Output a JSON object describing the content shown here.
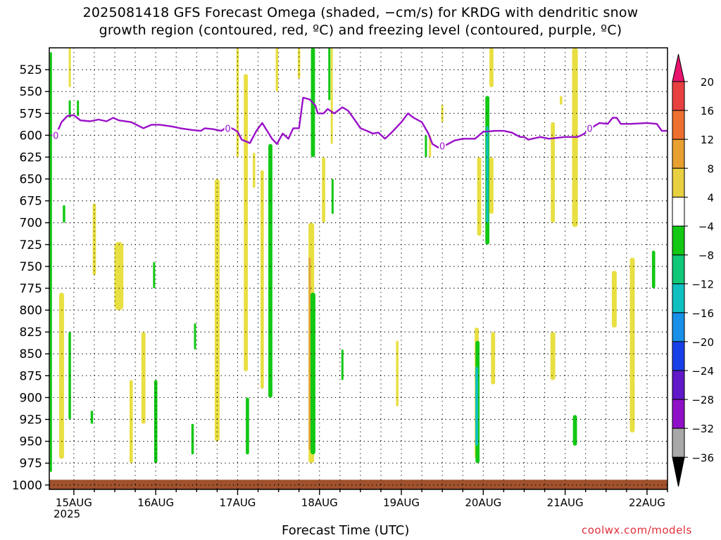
{
  "title": {
    "line1": "2025081418 GFS Forecast Omega (shaded, −cm/s) for KRDG with dendritic snow",
    "line2": "growth region (contoured, red, ºC) and freezing level (contoured, purple, ºC)"
  },
  "xlabel": "Forecast Time (UTC)",
  "credit": "coolwx.com/models",
  "colors": {
    "freezing_level": "#9a10c8",
    "ground": "#a0522d",
    "grid": "#000000"
  },
  "chart_data": {
    "type": "heatmap",
    "title": "2025081418 GFS Forecast Omega (shaded, −cm/s) for KRDG with dendritic snow growth region (contoured, red, ºC) and freezing level (contoured, purple, ºC)",
    "xlabel": "Forecast Time (UTC)",
    "ylabel": "",
    "y_scale": "pressure (hPa), inverted",
    "ylim": [
      1005,
      500
    ],
    "xlim": [
      14.7,
      22.25
    ],
    "x_ticks": [
      {
        "v": 15,
        "label": "15AUG"
      },
      {
        "v": 16,
        "label": "16AUG"
      },
      {
        "v": 17,
        "label": "17AUG"
      },
      {
        "v": 18,
        "label": "18AUG"
      },
      {
        "v": 19,
        "label": "19AUG"
      },
      {
        "v": 20,
        "label": "20AUG"
      },
      {
        "v": 21,
        "label": "21AUG"
      },
      {
        "v": 22,
        "label": "22AUG"
      }
    ],
    "x_sub_label": "2025",
    "y_ticks": [
      525,
      550,
      575,
      600,
      625,
      650,
      675,
      700,
      725,
      750,
      775,
      800,
      825,
      850,
      875,
      900,
      925,
      950,
      975,
      1000
    ],
    "grid": true,
    "colorbar": {
      "labels": [
        "20",
        "16",
        "12",
        "8",
        "4",
        "−4",
        "−8",
        "−12",
        "−16",
        "−20",
        "−24",
        "−28",
        "−32",
        "−36"
      ],
      "colors": [
        "#e8146e",
        "#e84040",
        "#ee7030",
        "#e8a030",
        "#e8d040",
        "#ffffff",
        "#12c814",
        "#10c878",
        "#10c0c0",
        "#1890e8",
        "#1840e8",
        "#6018c8",
        "#9010c8",
        "#a8a8a8",
        "#000000"
      ]
    },
    "freezing_level_line": {
      "label": "0",
      "points": [
        [
          14.72,
          600
        ],
        [
          14.78,
          600
        ],
        [
          14.85,
          585
        ],
        [
          14.92,
          578
        ],
        [
          15.0,
          577
        ],
        [
          15.08,
          583
        ],
        [
          15.2,
          584
        ],
        [
          15.3,
          582
        ],
        [
          15.4,
          584
        ],
        [
          15.48,
          580
        ],
        [
          15.55,
          583
        ],
        [
          15.7,
          585
        ],
        [
          15.85,
          592
        ],
        [
          15.95,
          588
        ],
        [
          16.05,
          588
        ],
        [
          16.2,
          590
        ],
        [
          16.3,
          592
        ],
        [
          16.45,
          594
        ],
        [
          16.55,
          595
        ],
        [
          16.6,
          592
        ],
        [
          16.7,
          593
        ],
        [
          16.8,
          595
        ],
        [
          16.88,
          590
        ],
        [
          16.95,
          593
        ],
        [
          17.0,
          596
        ],
        [
          17.05,
          605
        ],
        [
          17.15,
          609
        ],
        [
          17.23,
          595
        ],
        [
          17.3,
          586
        ],
        [
          17.38,
          598
        ],
        [
          17.42,
          604
        ],
        [
          17.48,
          610
        ],
        [
          17.55,
          598
        ],
        [
          17.62,
          604
        ],
        [
          17.68,
          592
        ],
        [
          17.75,
          592
        ],
        [
          17.8,
          557
        ],
        [
          17.88,
          559
        ],
        [
          17.95,
          566
        ],
        [
          17.98,
          575
        ],
        [
          18.05,
          575
        ],
        [
          18.1,
          570
        ],
        [
          18.18,
          575
        ],
        [
          18.28,
          568
        ],
        [
          18.35,
          572
        ],
        [
          18.45,
          585
        ],
        [
          18.5,
          592
        ],
        [
          18.58,
          595
        ],
        [
          18.65,
          598
        ],
        [
          18.72,
          597
        ],
        [
          18.8,
          604
        ],
        [
          18.88,
          597
        ],
        [
          19.0,
          585
        ],
        [
          19.08,
          575
        ],
        [
          19.15,
          580
        ],
        [
          19.25,
          585
        ],
        [
          19.33,
          598
        ],
        [
          19.38,
          610
        ],
        [
          19.45,
          614
        ],
        [
          19.55,
          611
        ],
        [
          19.65,
          606
        ],
        [
          19.75,
          604
        ],
        [
          19.9,
          604
        ],
        [
          20.0,
          596
        ],
        [
          20.15,
          595
        ],
        [
          20.25,
          595
        ],
        [
          20.35,
          597
        ],
        [
          20.45,
          602
        ],
        [
          20.5,
          602
        ],
        [
          20.55,
          605
        ],
        [
          20.7,
          602
        ],
        [
          20.8,
          604
        ],
        [
          20.9,
          603
        ],
        [
          21.0,
          602
        ],
        [
          21.15,
          602
        ],
        [
          21.22,
          599
        ],
        [
          21.28,
          595
        ],
        [
          21.33,
          591
        ],
        [
          21.42,
          586
        ],
        [
          21.52,
          587
        ],
        [
          21.58,
          580
        ],
        [
          21.63,
          580
        ],
        [
          21.68,
          587
        ],
        [
          21.8,
          587
        ],
        [
          22.0,
          586
        ],
        [
          22.12,
          587
        ],
        [
          22.18,
          595
        ],
        [
          22.25,
          595
        ]
      ],
      "contour_labels": [
        [
          14.78,
          600
        ],
        [
          16.88,
          592
        ],
        [
          19.5,
          612
        ],
        [
          21.3,
          592
        ]
      ]
    },
    "shaded_regions": [
      {
        "value": 4,
        "t": 15.25,
        "p_top": 678,
        "p_bot": 760,
        "w": 0.04
      },
      {
        "value": 4,
        "t": 15.55,
        "p_top": 722,
        "p_bot": 800,
        "w": 0.11
      },
      {
        "value": 4,
        "t": 14.85,
        "p_top": 780,
        "p_bot": 970,
        "w": 0.06
      },
      {
        "value": 4,
        "t": 14.95,
        "p_top": 500,
        "p_bot": 545,
        "w": 0.02
      },
      {
        "value": 4,
        "t": 15.7,
        "p_top": 880,
        "p_bot": 975,
        "w": 0.04
      },
      {
        "value": 4,
        "t": 15.85,
        "p_top": 825,
        "p_bot": 930,
        "w": 0.05
      },
      {
        "value": 4,
        "t": 16.75,
        "p_top": 650,
        "p_bot": 950,
        "w": 0.06
      },
      {
        "value": 4,
        "t": 17.0,
        "p_top": 500,
        "p_bot": 625,
        "w": 0.03
      },
      {
        "value": 4,
        "t": 17.1,
        "p_top": 530,
        "p_bot": 870,
        "w": 0.05
      },
      {
        "value": 4,
        "t": 17.2,
        "p_top": 620,
        "p_bot": 660,
        "w": 0.03
      },
      {
        "value": 4,
        "t": 17.3,
        "p_top": 640,
        "p_bot": 890,
        "w": 0.04
      },
      {
        "value": 4,
        "t": 17.48,
        "p_top": 500,
        "p_bot": 550,
        "w": 0.03
      },
      {
        "value": 4,
        "t": 17.75,
        "p_top": 500,
        "p_bot": 535,
        "w": 0.03
      },
      {
        "value": 4,
        "t": 17.9,
        "p_top": 700,
        "p_bot": 975,
        "w": 0.07
      },
      {
        "value": 8,
        "t": 17.88,
        "p_top": 740,
        "p_bot": 960,
        "w": 0.025
      },
      {
        "value": 4,
        "t": 18.05,
        "p_top": 625,
        "p_bot": 700,
        "w": 0.04
      },
      {
        "value": 4,
        "t": 18.15,
        "p_top": 500,
        "p_bot": 610,
        "w": 0.02
      },
      {
        "value": 4,
        "t": 19.35,
        "p_top": 600,
        "p_bot": 625,
        "w": 0.02
      },
      {
        "value": 4,
        "t": 18.95,
        "p_top": 835,
        "p_bot": 910,
        "w": 0.03
      },
      {
        "value": 4,
        "t": 19.5,
        "p_top": 565,
        "p_bot": 585,
        "w": 0.02
      },
      {
        "value": 4,
        "t": 19.95,
        "p_top": 625,
        "p_bot": 715,
        "w": 0.05
      },
      {
        "value": 4,
        "t": 19.92,
        "p_top": 820,
        "p_bot": 970,
        "w": 0.05
      },
      {
        "value": 4,
        "t": 20.1,
        "p_top": 500,
        "p_bot": 545,
        "w": 0.05
      },
      {
        "value": 4,
        "t": 20.1,
        "p_top": 625,
        "p_bot": 690,
        "w": 0.05
      },
      {
        "value": 4,
        "t": 20.12,
        "p_top": 825,
        "p_bot": 885,
        "w": 0.05
      },
      {
        "value": 4,
        "t": 20.85,
        "p_top": 585,
        "p_bot": 700,
        "w": 0.05
      },
      {
        "value": 4,
        "t": 20.85,
        "p_top": 825,
        "p_bot": 880,
        "w": 0.06
      },
      {
        "value": 4,
        "t": 20.95,
        "p_top": 555,
        "p_bot": 565,
        "w": 0.03
      },
      {
        "value": 4,
        "t": 21.12,
        "p_top": 500,
        "p_bot": 705,
        "w": 0.07
      },
      {
        "value": 4,
        "t": 21.6,
        "p_top": 755,
        "p_bot": 820,
        "w": 0.06
      },
      {
        "value": 4,
        "t": 21.82,
        "p_top": 740,
        "p_bot": 940,
        "w": 0.06
      },
      {
        "value": -4,
        "t": 14.72,
        "p_top": 505,
        "p_bot": 985,
        "w": 0.02
      },
      {
        "value": -4,
        "t": 14.88,
        "p_top": 680,
        "p_bot": 700,
        "w": 0.03
      },
      {
        "value": -4,
        "t": 14.95,
        "p_top": 825,
        "p_bot": 925,
        "w": 0.03
      },
      {
        "value": -4,
        "t": 14.95,
        "p_top": 560,
        "p_bot": 580,
        "w": 0.02
      },
      {
        "value": -4,
        "t": 15.05,
        "p_top": 560,
        "p_bot": 578,
        "w": 0.02
      },
      {
        "value": -4,
        "t": 15.22,
        "p_top": 915,
        "p_bot": 930,
        "w": 0.03
      },
      {
        "value": -4,
        "t": 15.98,
        "p_top": 745,
        "p_bot": 775,
        "w": 0.02
      },
      {
        "value": -4,
        "t": 16.0,
        "p_top": 880,
        "p_bot": 975,
        "w": 0.04
      },
      {
        "value": -4,
        "t": 16.48,
        "p_top": 815,
        "p_bot": 845,
        "w": 0.02
      },
      {
        "value": -4,
        "t": 16.45,
        "p_top": 930,
        "p_bot": 965,
        "w": 0.03
      },
      {
        "value": -4,
        "t": 17.12,
        "p_top": 900,
        "p_bot": 965,
        "w": 0.04
      },
      {
        "value": -4,
        "t": 17.4,
        "p_top": 610,
        "p_bot": 900,
        "w": 0.05
      },
      {
        "value": -4,
        "t": 17.92,
        "p_top": 500,
        "p_bot": 625,
        "w": 0.05
      },
      {
        "value": -4,
        "t": 17.92,
        "p_top": 780,
        "p_bot": 965,
        "w": 0.06
      },
      {
        "value": -4,
        "t": 18.12,
        "p_top": 500,
        "p_bot": 560,
        "w": 0.02
      },
      {
        "value": -4,
        "t": 18.16,
        "p_top": 650,
        "p_bot": 690,
        "w": 0.02
      },
      {
        "value": -4,
        "t": 18.28,
        "p_top": 845,
        "p_bot": 880,
        "w": 0.02
      },
      {
        "value": -4,
        "t": 19.3,
        "p_top": 600,
        "p_bot": 625,
        "w": 0.02
      },
      {
        "value": -4,
        "t": 20.05,
        "p_top": 555,
        "p_bot": 725,
        "w": 0.05
      },
      {
        "value": -4,
        "t": 19.93,
        "p_top": 835,
        "p_bot": 975,
        "w": 0.05
      },
      {
        "value": -4,
        "t": 21.12,
        "p_top": 920,
        "p_bot": 955,
        "w": 0.05
      },
      {
        "value": -4,
        "t": 22.08,
        "p_top": 732,
        "p_bot": 775,
        "w": 0.04
      },
      {
        "value": -12,
        "t": 20.05,
        "p_top": 590,
        "p_bot": 700,
        "w": 0.03
      },
      {
        "value": -12,
        "t": 19.92,
        "p_top": 865,
        "p_bot": 955,
        "w": 0.035
      }
    ],
    "ground_band": {
      "p_top": 994,
      "p_bot": 1005
    }
  }
}
